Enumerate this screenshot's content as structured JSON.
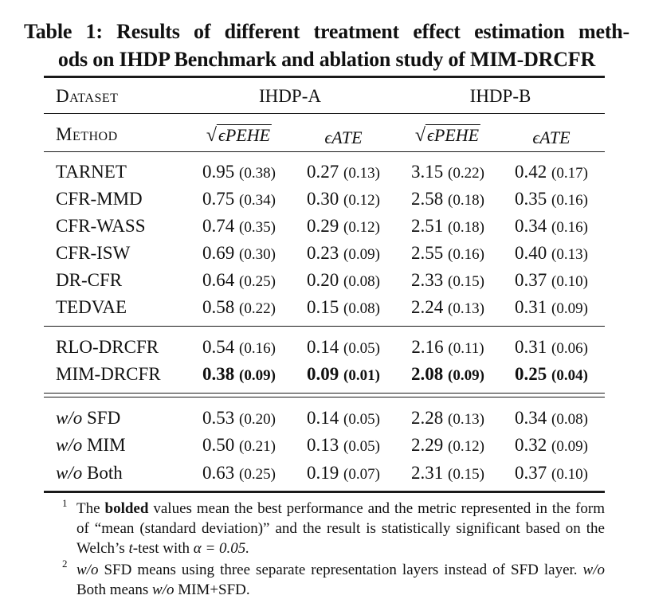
{
  "caption": {
    "line1": "Table 1: Results of different treatment effect estimation meth-",
    "line2": "ods on IHDP Benchmark and ablation study of MIM-DRCFR"
  },
  "header": {
    "dataset_label": "Dataset",
    "method_label": "Method",
    "groups": [
      "IHDP-A",
      "IHDP-B"
    ],
    "metric_pehe": "ϵPEHE",
    "metric_ate": "ϵATE"
  },
  "rows": [
    {
      "method": "TARNET",
      "v": [
        [
          "0.95",
          "(0.38)"
        ],
        [
          "0.27",
          "(0.13)"
        ],
        [
          "3.15",
          "(0.22)"
        ],
        [
          "0.42",
          "(0.17)"
        ]
      ]
    },
    {
      "method": "CFR-MMD",
      "v": [
        [
          "0.75",
          "(0.34)"
        ],
        [
          "0.30",
          "(0.12)"
        ],
        [
          "2.58",
          "(0.18)"
        ],
        [
          "0.35",
          "(0.16)"
        ]
      ]
    },
    {
      "method": "CFR-WASS",
      "v": [
        [
          "0.74",
          "(0.35)"
        ],
        [
          "0.29",
          "(0.12)"
        ],
        [
          "2.51",
          "(0.18)"
        ],
        [
          "0.34",
          "(0.16)"
        ]
      ]
    },
    {
      "method": "CFR-ISW",
      "v": [
        [
          "0.69",
          "(0.30)"
        ],
        [
          "0.23",
          "(0.09)"
        ],
        [
          "2.55",
          "(0.16)"
        ],
        [
          "0.40",
          "(0.13)"
        ]
      ]
    },
    {
      "method": "DR-CFR",
      "v": [
        [
          "0.64",
          "(0.25)"
        ],
        [
          "0.20",
          "(0.08)"
        ],
        [
          "2.33",
          "(0.15)"
        ],
        [
          "0.37",
          "(0.10)"
        ]
      ]
    },
    {
      "method": "TEDVAE",
      "v": [
        [
          "0.58",
          "(0.22)"
        ],
        [
          "0.15",
          "(0.08)"
        ],
        [
          "2.24",
          "(0.13)"
        ],
        [
          "0.31",
          "(0.09)"
        ]
      ]
    },
    {
      "method": "RLO-DRCFR",
      "v": [
        [
          "0.54",
          "(0.16)"
        ],
        [
          "0.14",
          "(0.05)"
        ],
        [
          "2.16",
          "(0.11)"
        ],
        [
          "0.31",
          "(0.06)"
        ]
      ]
    },
    {
      "method": "MIM-DRCFR",
      "bold": true,
      "v": [
        [
          "0.38",
          "(0.09)"
        ],
        [
          "0.09",
          "(0.01)"
        ],
        [
          "2.08",
          "(0.09)"
        ],
        [
          "0.25",
          "(0.04)"
        ]
      ]
    },
    {
      "method_prefix": "w/o",
      "method": "SFD",
      "v": [
        [
          "0.53",
          "(0.20)"
        ],
        [
          "0.14",
          "(0.05)"
        ],
        [
          "2.28",
          "(0.13)"
        ],
        [
          "0.34",
          "(0.08)"
        ]
      ]
    },
    {
      "method_prefix": "w/o",
      "method": "MIM",
      "v": [
        [
          "0.50",
          "(0.21)"
        ],
        [
          "0.13",
          "(0.05)"
        ],
        [
          "2.29",
          "(0.12)"
        ],
        [
          "0.32",
          "(0.09)"
        ]
      ]
    },
    {
      "method_prefix": "w/o",
      "method": "Both",
      "v": [
        [
          "0.63",
          "(0.25)"
        ],
        [
          "0.19",
          "(0.07)"
        ],
        [
          "2.31",
          "(0.15)"
        ],
        [
          "0.37",
          "(0.10)"
        ]
      ]
    }
  ],
  "footnotes": [
    {
      "num": "1",
      "pre": "The ",
      "bold": "bolded",
      "post": " values mean the best performance and the metric represented in the form of “mean (standard deviation)” and the result is statistically significant based on the Welch’s ",
      "t": "t",
      "post2": "-test with ",
      "alpha": "α = 0.05."
    },
    {
      "num": "2",
      "wo1": "w/o",
      "text1": " SFD means using three separate representation layers instead of SFD layer. ",
      "wo2": "w/o",
      "text2": " Both means ",
      "wo3": "w/o",
      "text3": " MIM+SFD."
    }
  ]
}
